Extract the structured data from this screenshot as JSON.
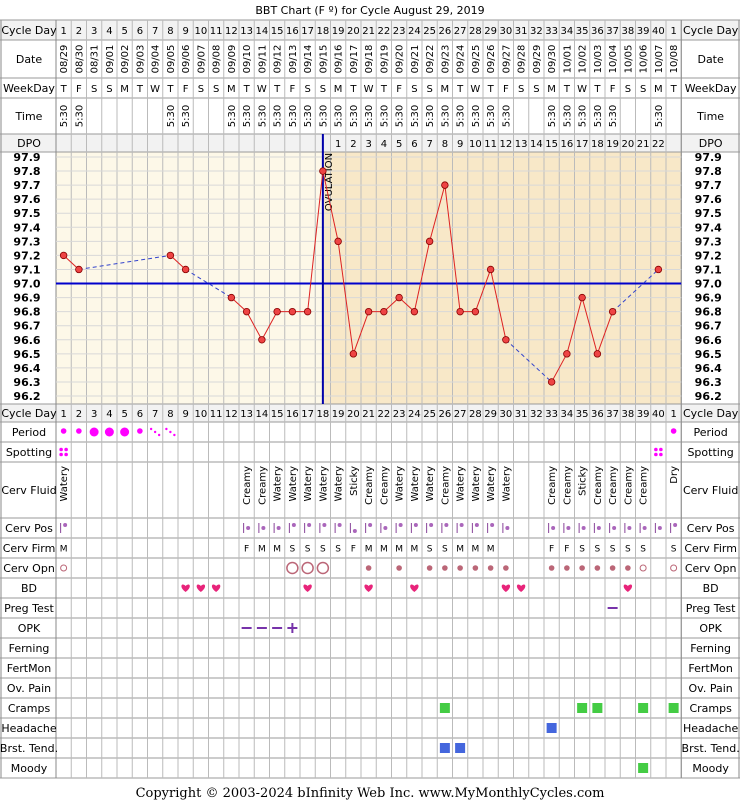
{
  "title": "BBT Chart (F º) for Cycle August 29, 2019",
  "footer": "Copyright © 2003-2024 bInfinity Web Inc.    www.MyMonthlyCycles.com",
  "ovulation_label": "OVULATION",
  "colors": {
    "follicular_bg": "#fdf8e8",
    "luteal_bg": "#f8e8c8",
    "temp_line": "#dd2222",
    "temp_point": "#ee4444",
    "gap_line": "#3344cc",
    "coverline": "#0000cc",
    "ovulation_line": "#0000aa",
    "period": "#ff00ff",
    "cramps": "#44cc44",
    "headache": "#4466dd",
    "breast": "#4466dd"
  },
  "rows": {
    "cycle_day": "Cycle Day",
    "date": "Date",
    "weekday": "WeekDay",
    "time": "Time",
    "dpo": "DPO",
    "period": "Period",
    "spotting": "Spotting",
    "cerv_fluid": "Cerv Fluid",
    "cerv_pos": "Cerv Pos",
    "cerv_firm": "Cerv Firm",
    "cerv_opn": "Cerv Opn",
    "bd": "BD",
    "preg_test": "Preg Test",
    "opk": "OPK",
    "ferning": "Ferning",
    "fertmon": "FertMon",
    "ov_pain": "Ov. Pain",
    "cramps": "Cramps",
    "headache": "Headache",
    "brst_tend": "Brst. Tend.",
    "moody": "Moody"
  },
  "columns": {
    "cycle_day": [
      "1",
      "2",
      "3",
      "4",
      "5",
      "6",
      "7",
      "8",
      "9",
      "10",
      "11",
      "12",
      "13",
      "14",
      "15",
      "16",
      "17",
      "18",
      "19",
      "20",
      "21",
      "22",
      "23",
      "24",
      "25",
      "26",
      "27",
      "28",
      "29",
      "30",
      "31",
      "32",
      "33",
      "34",
      "35",
      "36",
      "37",
      "38",
      "39",
      "40",
      "1"
    ],
    "date": [
      "08/29",
      "08/30",
      "08/31",
      "09/01",
      "09/02",
      "09/03",
      "09/04",
      "09/05",
      "09/06",
      "09/07",
      "09/08",
      "09/09",
      "09/10",
      "09/11",
      "09/12",
      "09/13",
      "09/14",
      "09/15",
      "09/16",
      "09/17",
      "09/18",
      "09/19",
      "09/20",
      "09/21",
      "09/22",
      "09/23",
      "09/24",
      "09/25",
      "09/26",
      "09/27",
      "09/28",
      "09/29",
      "09/30",
      "10/01",
      "10/02",
      "10/03",
      "10/04",
      "10/05",
      "10/06",
      "10/07",
      "10/08"
    ],
    "weekday": [
      "T",
      "F",
      "S",
      "S",
      "M",
      "T",
      "W",
      "T",
      "F",
      "S",
      "S",
      "M",
      "T",
      "W",
      "T",
      "F",
      "S",
      "S",
      "M",
      "T",
      "W",
      "T",
      "F",
      "S",
      "S",
      "M",
      "T",
      "W",
      "T",
      "F",
      "S",
      "S",
      "M",
      "T",
      "W",
      "T",
      "F",
      "S",
      "S",
      "M",
      "T"
    ],
    "time": [
      "5:30",
      "5:30",
      "",
      "",
      "",
      "",
      "",
      "5:30",
      "5:30",
      "",
      "",
      "5:30",
      "5:30",
      "5:30",
      "5:30",
      "5:30",
      "5:30",
      "5:30",
      "5:30",
      "5:30",
      "5:30",
      "5:30",
      "5:30",
      "5:30",
      "5:30",
      "5:30",
      "5:30",
      "5:30",
      "5:30",
      "5:30",
      "",
      "",
      "5:30",
      "5:30",
      "5:30",
      "5:30",
      "5:30",
      "",
      "",
      "5:30",
      ""
    ],
    "dpo": [
      "",
      "",
      "",
      "",
      "",
      "",
      "",
      "",
      "",
      "",
      "",
      "",
      "",
      "",
      "",
      "",
      "",
      "",
      "1",
      "2",
      "3",
      "4",
      "5",
      "6",
      "7",
      "8",
      "9",
      "10",
      "11",
      "12",
      "13",
      "14",
      "15",
      "16",
      "17",
      "18",
      "19",
      "20",
      "21",
      "22",
      ""
    ],
    "cerv_fluid": [
      "Watery",
      "",
      "",
      "",
      "",
      "",
      "",
      "",
      "",
      "",
      "",
      "",
      "Creamy",
      "Creamy",
      "Watery",
      "Watery",
      "Watery",
      "Watery",
      "Watery",
      "Sticky",
      "Creamy",
      "Creamy",
      "Watery",
      "Watery",
      "Watery",
      "Creamy",
      "Watery",
      "Watery",
      "Watery",
      "Watery",
      "",
      "",
      "Creamy",
      "Creamy",
      "Sticky",
      "Creamy",
      "Creamy",
      "Creamy",
      "Creamy",
      "",
      "Dry"
    ],
    "cerv_firm": [
      "M",
      "",
      "",
      "",
      "",
      "",
      "",
      "",
      "",
      "",
      "",
      "",
      "F",
      "M",
      "M",
      "S",
      "S",
      "S",
      "S",
      "F",
      "M",
      "M",
      "M",
      "M",
      "S",
      "S",
      "M",
      "M",
      "M",
      "",
      "",
      "",
      "F",
      "F",
      "S",
      "S",
      "S",
      "S",
      "S",
      "",
      "S"
    ],
    "cerv_pos": [
      "hi",
      "",
      "",
      "",
      "",
      "",
      "",
      "",
      "",
      "",
      "",
      "",
      "mid",
      "mid",
      "mid",
      "hi",
      "hi",
      "hi",
      "hi",
      "lo",
      "hi",
      "mid",
      "hi",
      "hi",
      "hi",
      "hi",
      "hi",
      "hi",
      "hi",
      "mid",
      "",
      "",
      "mid",
      "mid",
      "mid",
      "mid",
      "mid",
      "mid",
      "mid",
      "mid",
      "hi"
    ],
    "cerv_opn": [
      "ring",
      "",
      "",
      "",
      "",
      "",
      "",
      "",
      "",
      "",
      "",
      "",
      "",
      "",
      "",
      "bigring",
      "bigring",
      "bigring",
      "",
      "",
      "dot",
      "",
      "dot",
      "",
      "dot",
      "dot",
      "dot",
      "dot",
      "dot",
      "dot",
      "",
      "",
      "dot",
      "dot",
      "dot",
      "dot",
      "dot",
      "dot",
      "ring",
      "",
      "ring"
    ],
    "period": [
      "sm",
      "sm",
      "lg",
      "lg",
      "lg",
      "sm",
      "spot",
      "spot",
      "",
      "",
      "",
      "",
      "",
      "",
      "",
      "",
      "",
      "",
      "",
      "",
      "",
      "",
      "",
      "",
      "",
      "",
      "",
      "",
      "",
      "",
      "",
      "",
      "",
      "",
      "",
      "",
      "",
      "",
      "",
      "",
      "sm"
    ],
    "spotting": [
      0,
      0,
      0,
      0,
      0,
      0,
      0,
      0,
      0,
      0,
      0,
      0,
      0,
      0,
      0,
      0,
      0,
      0,
      0,
      0,
      0,
      0,
      0,
      0,
      0,
      0,
      0,
      0,
      0,
      0,
      0,
      0,
      0,
      0,
      0,
      0,
      0,
      0,
      0,
      0,
      0
    ],
    "spotting_days": [
      1,
      40
    ],
    "bd_days": [
      9,
      10,
      11,
      17,
      21,
      24,
      30,
      31,
      38
    ],
    "preg_test_days": [
      37
    ],
    "opk": {
      "13": "-",
      "14": "-",
      "15": "-",
      "16": "+"
    },
    "cramps_days": [
      26,
      35,
      36,
      39,
      41
    ],
    "headache_days": [
      33
    ],
    "breast_days": [
      26,
      27
    ],
    "moody_days": [
      39
    ]
  },
  "chart_data": {
    "type": "line",
    "title": "BBT Chart (F º) for Cycle August 29, 2019",
    "xlabel": "Cycle Day",
    "ylabel": "",
    "ylim": [
      96.2,
      97.9
    ],
    "y_ticks": [
      "97.9",
      "97.8",
      "97.7",
      "97.6",
      "97.5",
      "97.4",
      "97.3",
      "97.2",
      "97.1",
      "97.0",
      "96.9",
      "96.8",
      "96.7",
      "96.6",
      "96.5",
      "96.4",
      "96.3",
      "96.2"
    ],
    "coverline": 97.0,
    "ovulation_day": 18,
    "series": [
      {
        "values": [
          97.2,
          97.1,
          null,
          null,
          null,
          null,
          null,
          97.2,
          97.1,
          null,
          null,
          96.9,
          96.8,
          96.6,
          96.8,
          96.8,
          96.8,
          97.8,
          97.3,
          96.5,
          96.8,
          96.8,
          96.9,
          96.8,
          97.3,
          97.7,
          96.8,
          96.8,
          97.1,
          96.6,
          null,
          null,
          96.3,
          96.5,
          96.9,
          96.5,
          96.8,
          null,
          null,
          97.1,
          null
        ]
      }
    ]
  }
}
